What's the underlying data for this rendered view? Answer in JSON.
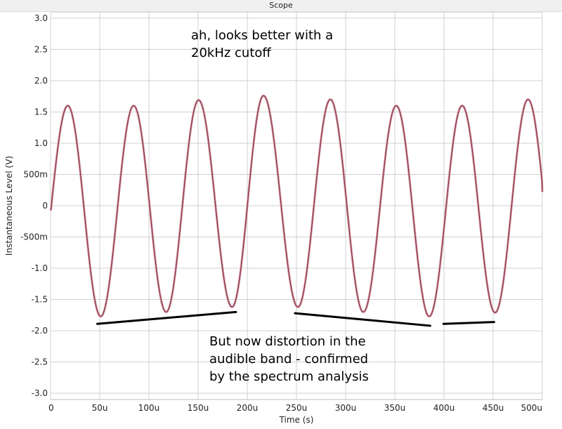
{
  "window": {
    "title": "Scope"
  },
  "annotations": {
    "top": [
      "ah, looks better with a",
      "20kHz cutoff"
    ],
    "bottom": [
      "But now distortion in the",
      "audible band - confirmed",
      "by the spectrum analysis"
    ]
  },
  "colors": {
    "trace": "#8b3a4a",
    "trace_highlight": "#d9a0ad",
    "grid": "#d0d0d0",
    "marker": "#000000"
  },
  "chart_data": {
    "type": "line",
    "xlabel": "Time (s)",
    "ylabel": "Instantaneous Level (V)",
    "xlim": [
      0,
      0.0005
    ],
    "ylim": [
      -3.1,
      3.1
    ],
    "x_ticks": [
      0,
      5e-05,
      0.0001,
      0.00015,
      0.0002,
      0.00025,
      0.0003,
      0.00035,
      0.0004,
      0.00045,
      0.0005
    ],
    "x_tick_labels": [
      "0",
      "50u",
      "100u",
      "150u",
      "200u",
      "250u",
      "300u",
      "350u",
      "400u",
      "450u",
      "500u"
    ],
    "y_ticks": [
      3.0,
      2.5,
      2.0,
      1.5,
      1.0,
      0.5,
      0,
      -0.5,
      -1.0,
      -1.5,
      -2.0,
      -2.5,
      -3.0
    ],
    "y_tick_labels": [
      "3.0",
      "2.5",
      "2.0",
      "1.5",
      "1.0",
      "500m",
      "0",
      "-500m",
      "-1.0",
      "-1.5",
      "-2.0",
      "-2.5",
      "-3.0"
    ],
    "grid": true,
    "series": [
      {
        "start_value": -0.05,
        "end_value": 0.22,
        "peaks": [
          {
            "x": 1.75e-05,
            "y": 1.6
          },
          {
            "x": 8.45e-05,
            "y": 1.6
          },
          {
            "x": 0.0001505,
            "y": 1.69
          },
          {
            "x": 0.0002165,
            "y": 1.76
          },
          {
            "x": 0.0002845,
            "y": 1.7
          },
          {
            "x": 0.0003515,
            "y": 1.6
          },
          {
            "x": 0.0004185,
            "y": 1.6
          },
          {
            "x": 0.0004855,
            "y": 1.7
          }
        ],
        "troughs": [
          {
            "x": 5.1e-05,
            "y": -1.77
          },
          {
            "x": 0.0001175,
            "y": -1.7
          },
          {
            "x": 0.0001845,
            "y": -1.62
          },
          {
            "x": 0.0002515,
            "y": -1.62
          },
          {
            "x": 0.000318,
            "y": -1.7
          },
          {
            "x": 0.000385,
            "y": -1.77
          },
          {
            "x": 0.000452,
            "y": -1.71
          }
        ]
      }
    ],
    "marker_lines": [
      {
        "x1": 4.75e-05,
        "y1": -1.89,
        "x2": 0.0001885,
        "y2": -1.7
      },
      {
        "x1": 0.0002485,
        "y1": -1.72,
        "x2": 0.000386,
        "y2": -1.92
      },
      {
        "x1": 0.0003995,
        "y1": -1.89,
        "x2": 0.000451,
        "y2": -1.86
      }
    ]
  }
}
